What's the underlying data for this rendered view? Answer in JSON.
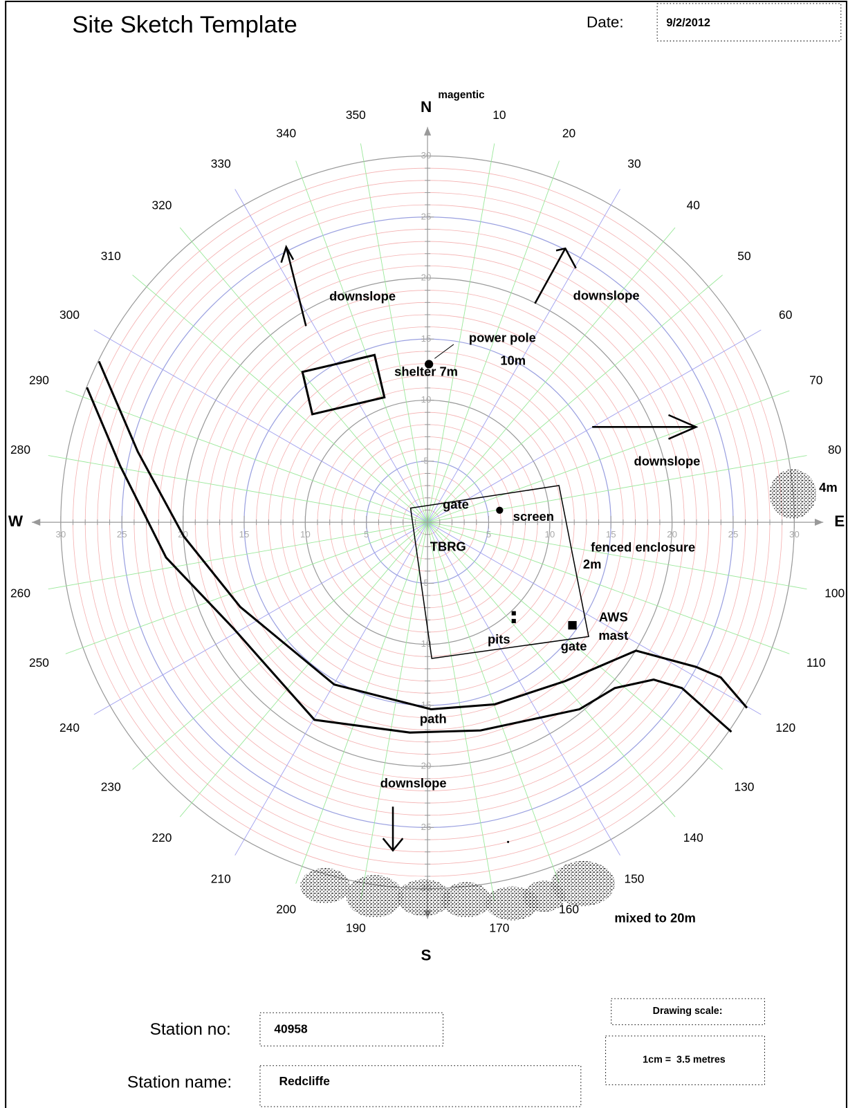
{
  "header": {
    "title": "Site Sketch Template",
    "date_label": "Date:",
    "date": "9/2/2012"
  },
  "compass": {
    "north": "N",
    "north_note": "magentic",
    "south": "S",
    "west": "W",
    "east": "E",
    "bearings": [
      10,
      20,
      30,
      40,
      50,
      60,
      70,
      80,
      100,
      110,
      120,
      130,
      140,
      150,
      160,
      170,
      190,
      200,
      210,
      220,
      230,
      240,
      250,
      260,
      280,
      290,
      300,
      310,
      320,
      330,
      340,
      350
    ],
    "rings": [
      5,
      10,
      15,
      20,
      25,
      30
    ]
  },
  "annotations": [
    {
      "text": "downslope"
    },
    {
      "text": "downslope"
    },
    {
      "text": "downslope"
    },
    {
      "text": "downslope"
    },
    {
      "text": "power pole"
    },
    {
      "text": "10m"
    },
    {
      "text": "shelter 7m"
    },
    {
      "text": "gate"
    },
    {
      "text": "screen"
    },
    {
      "text": "TBRG"
    },
    {
      "text": "fenced enclosure"
    },
    {
      "text": "2m"
    },
    {
      "text": "AWS"
    },
    {
      "text": "mast"
    },
    {
      "text": "pits"
    },
    {
      "text": "gate"
    },
    {
      "text": "path"
    },
    {
      "text": "mixed to 20m"
    },
    {
      "text": "4m"
    }
  ],
  "footer": {
    "station_no_label": "Station no:",
    "station_no": "40958",
    "station_name_label": "Station name:",
    "station_name": "Redcliffe",
    "scale_label": "Drawing scale:",
    "scale": "1cm =  3.5 metres"
  }
}
